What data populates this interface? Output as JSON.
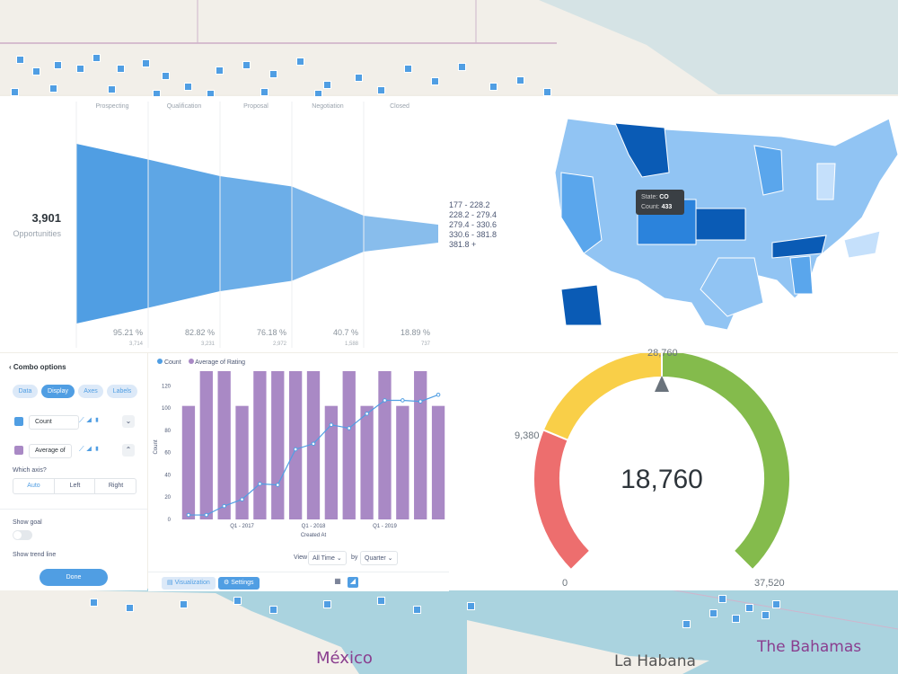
{
  "map": {
    "labels": {
      "mexico": "México",
      "havana": "La Habana",
      "bahamas": "The Bahamas"
    }
  },
  "funnel": {
    "total": "3,901",
    "total_label": "Opportunities",
    "stages": [
      "Prospecting",
      "Qualification",
      "Proposal",
      "Negotiation",
      "Closed"
    ],
    "percents": [
      "95.21 %",
      "82.82 %",
      "76.18 %",
      "40.7 %",
      "18.89 %"
    ],
    "counts": [
      "3,714",
      "3,231",
      "2,972",
      "1,588",
      "737"
    ],
    "color": "#509ee3"
  },
  "us_map": {
    "legend": [
      "177 - 228.2",
      "228.2 - 279.4",
      "279.4 - 330.6",
      "330.6 - 381.8",
      "381.8 +"
    ],
    "tooltip": {
      "state_label": "State:",
      "state_value": "CO",
      "count_label": "Count:",
      "count_value": "433"
    },
    "colors": [
      "#c5e0fb",
      "#91c4f3",
      "#5aa6ec",
      "#2b83dc",
      "#0a5bb5"
    ]
  },
  "combo_options": {
    "title": "Combo options",
    "tabs": [
      "Data",
      "Display",
      "Axes",
      "Labels"
    ],
    "active_tab": "Display",
    "series": [
      {
        "name": "Count",
        "color": "#509ee3"
      },
      {
        "name": "Average of",
        "color": "#a989c5"
      }
    ],
    "which_axis_label": "Which axis?",
    "axis_options": [
      "Auto",
      "Left",
      "Right"
    ],
    "active_axis": "Auto",
    "show_goal_label": "Show goal",
    "show_trend_label": "Show trend line",
    "done_label": "Done"
  },
  "combo_chart": {
    "legend": [
      {
        "name": "Count",
        "color": "#509ee3"
      },
      {
        "name": "Average of Rating",
        "color": "#a989c5"
      }
    ],
    "view_label": "View",
    "view_value": "All Time",
    "by_label": "by",
    "by_value": "Quarter",
    "viz_button": "Visualization",
    "settings_button": "Settings"
  },
  "chart_data": {
    "type": "bar",
    "xlabel": "Created At",
    "ylabel": "Count",
    "ylim": [
      0,
      130
    ],
    "yticks": [
      0,
      20,
      40,
      60,
      80,
      100,
      120
    ],
    "x_tick_labels": [
      {
        "index": 3,
        "label": "Q1 - 2017"
      },
      {
        "index": 7,
        "label": "Q1 - 2018"
      },
      {
        "index": 11,
        "label": "Q1 - 2019"
      }
    ],
    "series": [
      {
        "name": "Average of Rating",
        "kind": "bar",
        "color": "#a989c5",
        "values": [
          102,
          137,
          137,
          102,
          137,
          137,
          137,
          137,
          102,
          137,
          102,
          137,
          102,
          137,
          102
        ]
      },
      {
        "name": "Count",
        "kind": "line",
        "color": "#509ee3",
        "values": [
          4,
          4,
          12,
          18,
          32,
          31,
          63,
          68,
          85,
          82,
          95,
          107,
          107,
          106,
          112
        ]
      }
    ]
  },
  "gauge": {
    "value": "18,760",
    "min_label": "0",
    "mid_label": "9,380",
    "max_label": "37,520",
    "top_label": "28,760",
    "segments": [
      {
        "from": 0,
        "to": 9380,
        "color": "#ed6e6e"
      },
      {
        "from": 9380,
        "to": 18760,
        "color": "#f9cf48"
      },
      {
        "from": 18760,
        "to": 37520,
        "color": "#84bb4c"
      }
    ],
    "needle_value": 18760
  }
}
